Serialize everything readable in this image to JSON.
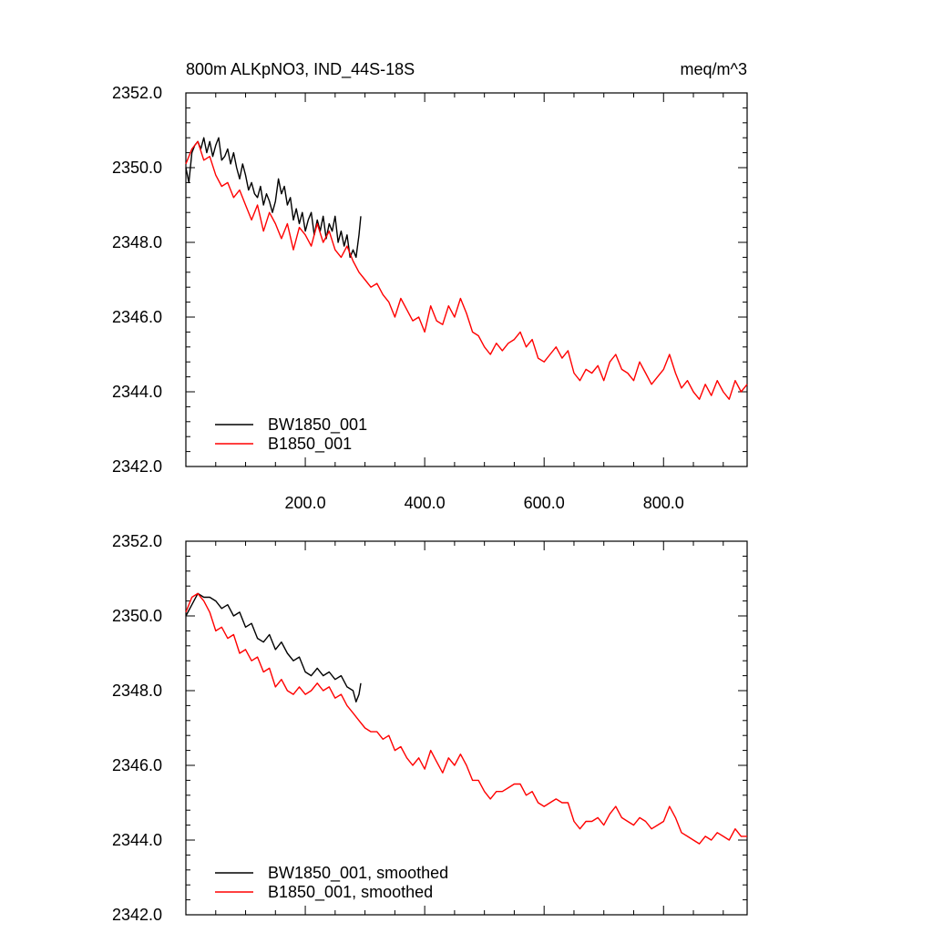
{
  "header": {
    "title": "800m ALKpNO3, IND_44S-18S",
    "units": "meq/m^3"
  },
  "colors": {
    "BW1850_001": "#000000",
    "B1850_001": "#ff0000"
  },
  "chart_data": [
    {
      "type": "line",
      "title": "800m ALKpNO3, IND_44S-18S",
      "units_label": "meq/m^3",
      "xlim": [
        0,
        940
      ],
      "ylim": [
        2342,
        2352
      ],
      "xticks": [
        200,
        400,
        600,
        800
      ],
      "xtick_labels": [
        "200.0",
        "400.0",
        "600.0",
        "800.0"
      ],
      "yticks": [
        2342,
        2344,
        2346,
        2348,
        2350,
        2352
      ],
      "ytick_labels": [
        "2342.0",
        "2344.0",
        "2346.0",
        "2348.0",
        "2350.0",
        "2352.0"
      ],
      "legend_placement": "bottom-left",
      "grid": false,
      "series": [
        {
          "name": "BW1850_001",
          "color": "#000000",
          "x": [
            0,
            5,
            10,
            15,
            20,
            25,
            30,
            35,
            40,
            45,
            50,
            55,
            60,
            65,
            70,
            75,
            80,
            85,
            90,
            95,
            100,
            105,
            110,
            115,
            120,
            125,
            130,
            135,
            140,
            145,
            150,
            155,
            160,
            165,
            170,
            175,
            180,
            185,
            190,
            195,
            200,
            205,
            210,
            215,
            220,
            225,
            230,
            235,
            240,
            245,
            250,
            255,
            260,
            265,
            270,
            275,
            280,
            285,
            290,
            293
          ],
          "y": [
            2350.0,
            2349.6,
            2350.4,
            2350.6,
            2350.7,
            2350.5,
            2350.8,
            2350.4,
            2350.7,
            2350.3,
            2350.6,
            2350.8,
            2350.2,
            2350.3,
            2350.5,
            2350.1,
            2350.4,
            2350.0,
            2349.7,
            2350.1,
            2349.8,
            2349.4,
            2349.6,
            2349.3,
            2349.2,
            2349.5,
            2349.0,
            2349.3,
            2349.1,
            2348.8,
            2349.1,
            2349.7,
            2349.3,
            2349.5,
            2349.0,
            2349.2,
            2348.6,
            2348.9,
            2348.5,
            2348.8,
            2348.3,
            2348.6,
            2348.8,
            2348.2,
            2348.6,
            2348.3,
            2348.7,
            2348.1,
            2348.5,
            2348.3,
            2348.7,
            2348.0,
            2348.3,
            2347.9,
            2348.2,
            2347.6,
            2347.8,
            2347.6,
            2348.2,
            2348.7
          ]
        },
        {
          "name": "B1850_001",
          "color": "#ff0000",
          "x": [
            0,
            10,
            20,
            30,
            40,
            50,
            60,
            70,
            80,
            90,
            100,
            110,
            120,
            130,
            140,
            150,
            160,
            170,
            180,
            190,
            200,
            210,
            220,
            230,
            240,
            250,
            260,
            270,
            280,
            290,
            300,
            310,
            320,
            330,
            340,
            350,
            360,
            370,
            380,
            390,
            400,
            410,
            420,
            430,
            440,
            450,
            460,
            470,
            480,
            490,
            500,
            510,
            520,
            530,
            540,
            550,
            560,
            570,
            580,
            590,
            600,
            610,
            620,
            630,
            640,
            650,
            660,
            670,
            680,
            690,
            700,
            710,
            720,
            730,
            740,
            750,
            760,
            770,
            780,
            790,
            800,
            810,
            820,
            830,
            840,
            850,
            860,
            870,
            880,
            890,
            900,
            910,
            920,
            930,
            940
          ],
          "y": [
            2350.1,
            2350.5,
            2350.7,
            2350.2,
            2350.3,
            2349.8,
            2349.5,
            2349.6,
            2349.2,
            2349.4,
            2349.0,
            2348.6,
            2349.0,
            2348.3,
            2348.8,
            2348.5,
            2348.1,
            2348.5,
            2347.8,
            2348.4,
            2348.2,
            2347.9,
            2348.5,
            2348.0,
            2348.3,
            2347.8,
            2347.6,
            2347.9,
            2347.5,
            2347.2,
            2347.0,
            2346.8,
            2346.9,
            2346.6,
            2346.4,
            2346.0,
            2346.5,
            2346.2,
            2345.9,
            2346.0,
            2345.6,
            2346.3,
            2345.9,
            2345.8,
            2346.3,
            2346.0,
            2346.5,
            2346.1,
            2345.6,
            2345.5,
            2345.2,
            2345.0,
            2345.3,
            2345.1,
            2345.3,
            2345.4,
            2345.6,
            2345.2,
            2345.4,
            2344.9,
            2344.8,
            2345.0,
            2345.2,
            2344.9,
            2345.1,
            2344.5,
            2344.3,
            2344.6,
            2344.5,
            2344.7,
            2344.3,
            2344.8,
            2345.0,
            2344.6,
            2344.5,
            2344.3,
            2344.8,
            2344.5,
            2344.2,
            2344.4,
            2344.6,
            2345.0,
            2344.5,
            2344.1,
            2344.3,
            2344.0,
            2343.8,
            2344.2,
            2343.9,
            2344.3,
            2344.0,
            2343.8,
            2344.3,
            2344.0,
            2344.2
          ]
        }
      ]
    },
    {
      "type": "line",
      "xlim": [
        0,
        940
      ],
      "ylim": [
        2342,
        2352
      ],
      "xticks": [
        200,
        400,
        600,
        800
      ],
      "yticks": [
        2342,
        2344,
        2346,
        2348,
        2350,
        2352
      ],
      "ytick_labels": [
        "2342.0",
        "2344.0",
        "2346.0",
        "2348.0",
        "2350.0",
        "2352.0"
      ],
      "legend_placement": "bottom-left",
      "grid": false,
      "series": [
        {
          "name": "BW1850_001, smoothed",
          "color": "#000000",
          "x": [
            0,
            10,
            20,
            30,
            40,
            50,
            60,
            70,
            80,
            90,
            100,
            110,
            120,
            130,
            140,
            150,
            160,
            170,
            180,
            190,
            200,
            210,
            220,
            230,
            240,
            250,
            260,
            270,
            280,
            285,
            290,
            293
          ],
          "y": [
            2350.0,
            2350.3,
            2350.6,
            2350.5,
            2350.5,
            2350.4,
            2350.2,
            2350.3,
            2350.0,
            2350.1,
            2349.7,
            2349.8,
            2349.4,
            2349.3,
            2349.5,
            2349.1,
            2349.3,
            2349.0,
            2348.8,
            2348.9,
            2348.5,
            2348.4,
            2348.6,
            2348.4,
            2348.5,
            2348.3,
            2348.4,
            2348.1,
            2348.0,
            2347.7,
            2347.9,
            2348.2
          ]
        },
        {
          "name": "B1850_001, smoothed",
          "color": "#ff0000",
          "x": [
            0,
            10,
            20,
            30,
            40,
            50,
            60,
            70,
            80,
            90,
            100,
            110,
            120,
            130,
            140,
            150,
            160,
            170,
            180,
            190,
            200,
            210,
            220,
            230,
            240,
            250,
            260,
            270,
            280,
            290,
            300,
            310,
            320,
            330,
            340,
            350,
            360,
            370,
            380,
            390,
            400,
            410,
            420,
            430,
            440,
            450,
            460,
            470,
            480,
            490,
            500,
            510,
            520,
            530,
            540,
            550,
            560,
            570,
            580,
            590,
            600,
            610,
            620,
            630,
            640,
            650,
            660,
            670,
            680,
            690,
            700,
            710,
            720,
            730,
            740,
            750,
            760,
            770,
            780,
            790,
            800,
            810,
            820,
            830,
            840,
            850,
            860,
            870,
            880,
            890,
            900,
            910,
            920,
            930,
            940
          ],
          "y": [
            2350.1,
            2350.5,
            2350.6,
            2350.4,
            2350.1,
            2349.6,
            2349.7,
            2349.4,
            2349.5,
            2349.0,
            2349.1,
            2348.8,
            2348.9,
            2348.5,
            2348.6,
            2348.1,
            2348.3,
            2348.0,
            2347.9,
            2348.1,
            2347.9,
            2348.0,
            2348.2,
            2348.0,
            2348.1,
            2347.8,
            2347.9,
            2347.6,
            2347.4,
            2347.2,
            2347.0,
            2346.9,
            2346.9,
            2346.7,
            2346.8,
            2346.4,
            2346.5,
            2346.2,
            2346.0,
            2346.2,
            2345.9,
            2346.4,
            2346.1,
            2345.8,
            2346.2,
            2346.0,
            2346.3,
            2346.0,
            2345.6,
            2345.6,
            2345.3,
            2345.1,
            2345.3,
            2345.3,
            2345.4,
            2345.5,
            2345.5,
            2345.2,
            2345.3,
            2345.0,
            2344.9,
            2345.0,
            2345.1,
            2345.0,
            2345.0,
            2344.5,
            2344.3,
            2344.5,
            2344.5,
            2344.6,
            2344.4,
            2344.7,
            2344.9,
            2344.6,
            2344.5,
            2344.4,
            2344.6,
            2344.5,
            2344.3,
            2344.4,
            2344.5,
            2344.9,
            2344.6,
            2344.2,
            2344.1,
            2344.0,
            2343.9,
            2344.1,
            2344.0,
            2344.2,
            2344.1,
            2344.0,
            2344.3,
            2344.1,
            2344.1
          ]
        }
      ]
    }
  ]
}
